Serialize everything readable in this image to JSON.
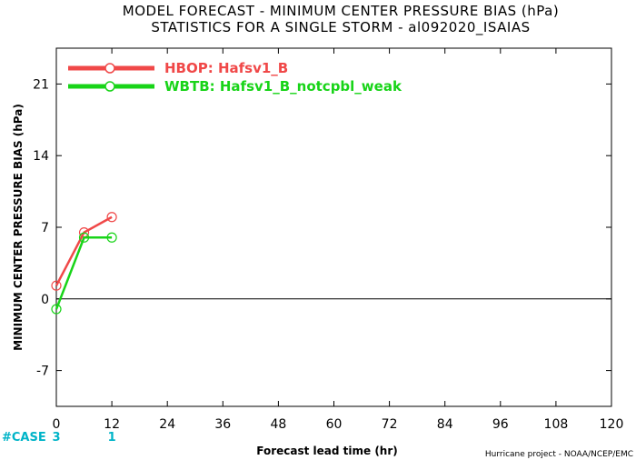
{
  "chart_data": {
    "type": "line",
    "title": "MODEL FORECAST - MINIMUM CENTER PRESSURE BIAS (hPa)",
    "subtitle": "STATISTICS FOR A SINGLE STORM - al092020_ISAIAS",
    "xlabel": "Forecast lead time (hr)",
    "ylabel": "MINIMUM CENTER PRESSURE BIAS (hPa)",
    "xlim": [
      0,
      120
    ],
    "ylim": [
      -10.5,
      24.5
    ],
    "x_ticks": [
      0,
      12,
      24,
      36,
      48,
      60,
      72,
      84,
      96,
      108,
      120
    ],
    "y_ticks": [
      -7,
      0,
      7,
      14,
      21
    ],
    "grid": false,
    "legend_position": "top-left",
    "series": [
      {
        "name": "HBOP: Hafsv1_B",
        "color": "#f04848",
        "x": [
          0,
          6,
          12
        ],
        "values": [
          1.3,
          6.5,
          8.0
        ]
      },
      {
        "name": "WBTB: Hafsv1_B_notcpbl_weak",
        "color": "#18d418",
        "x": [
          0,
          6,
          12
        ],
        "values": [
          -1.0,
          6.0,
          6.0
        ]
      }
    ],
    "case_label": "#CASE",
    "case_counts": [
      {
        "x": 0,
        "count": "3"
      },
      {
        "x": 12,
        "count": "1"
      }
    ],
    "credit": "Hurricane project - NOAA/NCEP/EMC"
  }
}
